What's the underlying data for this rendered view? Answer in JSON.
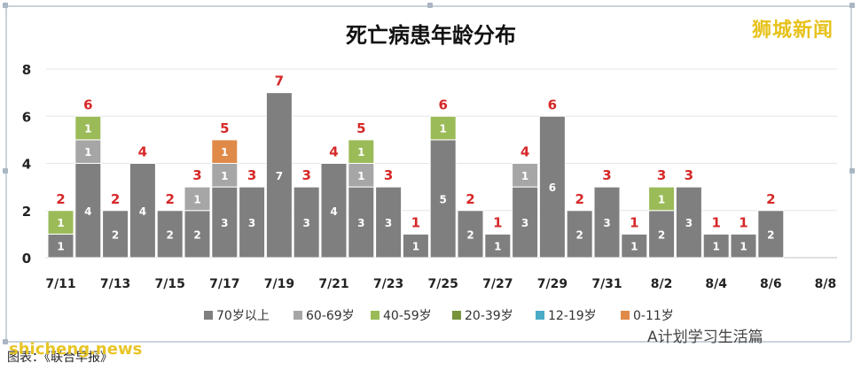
{
  "brand": "狮城新闻",
  "watermark": "shicheng.news",
  "footer_left": "图表：《联合早报》",
  "footer_right": "A计划学习生活篇",
  "colors": {
    "70_plus": "#7f7f7f",
    "60_69": "#a6a6a6",
    "40_59": "#9bbb59",
    "20_39": "#77933c",
    "12_19": "#4bacc6",
    "0_11": "#e08a49",
    "total_label": "#d62828"
  },
  "chart_data": {
    "type": "bar",
    "stacked": true,
    "title": "死亡病患年龄分布",
    "ylim": [
      0,
      8
    ],
    "yticks": [
      "0",
      "2",
      "4",
      "6",
      "8"
    ],
    "categories": [
      "7/11",
      "7/12",
      "7/13",
      "7/14",
      "7/15",
      "7/16",
      "7/17",
      "7/18",
      "7/19",
      "7/20",
      "7/21",
      "7/22",
      "7/23",
      "7/24",
      "7/25",
      "7/26",
      "7/27",
      "7/28",
      "7/29",
      "7/30",
      "7/31",
      "8/1",
      "8/2",
      "8/3",
      "8/4",
      "8/5",
      "8/6",
      "8/7",
      "8/8"
    ],
    "xtick_labels": [
      "7/11",
      "7/13",
      "7/15",
      "7/17",
      "7/19",
      "7/21",
      "7/23",
      "7/25",
      "7/27",
      "7/29",
      "7/31",
      "8/2",
      "8/4",
      "8/6",
      "8/8"
    ],
    "series": [
      {
        "name": "70岁以上",
        "color_key": "70_plus",
        "values": [
          1,
          4,
          2,
          4,
          2,
          2,
          3,
          3,
          7,
          3,
          4,
          3,
          3,
          1,
          5,
          2,
          1,
          3,
          6,
          2,
          3,
          1,
          2,
          3,
          1,
          1,
          2,
          0,
          0
        ]
      },
      {
        "name": "60-69岁",
        "color_key": "60_69",
        "values": [
          0,
          1,
          0,
          0,
          0,
          1,
          1,
          0,
          0,
          0,
          0,
          1,
          0,
          0,
          0,
          0,
          0,
          1,
          0,
          0,
          0,
          0,
          0,
          0,
          0,
          0,
          0,
          0,
          0
        ]
      },
      {
        "name": "40-59岁",
        "color_key": "40_59",
        "values": [
          1,
          1,
          0,
          0,
          0,
          0,
          0,
          0,
          0,
          0,
          0,
          1,
          0,
          0,
          1,
          0,
          0,
          0,
          0,
          0,
          0,
          0,
          1,
          0,
          0,
          0,
          0,
          0,
          0
        ]
      },
      {
        "name": "20-39岁",
        "color_key": "20_39",
        "values": [
          0,
          0,
          0,
          0,
          0,
          0,
          0,
          0,
          0,
          0,
          0,
          0,
          0,
          0,
          0,
          0,
          0,
          0,
          0,
          0,
          0,
          0,
          0,
          0,
          0,
          0,
          0,
          0,
          0
        ]
      },
      {
        "name": "12-19岁",
        "color_key": "12_19",
        "values": [
          0,
          0,
          0,
          0,
          0,
          0,
          0,
          0,
          0,
          0,
          0,
          0,
          0,
          0,
          0,
          0,
          0,
          0,
          0,
          0,
          0,
          0,
          0,
          0,
          0,
          0,
          0,
          0,
          0
        ]
      },
      {
        "name": "0-11岁",
        "color_key": "0_11",
        "values": [
          0,
          0,
          0,
          0,
          0,
          0,
          1,
          0,
          0,
          0,
          0,
          0,
          0,
          0,
          0,
          0,
          0,
          0,
          0,
          0,
          0,
          0,
          0,
          0,
          0,
          0,
          0,
          0,
          0
        ]
      }
    ],
    "totals": [
      2,
      6,
      2,
      4,
      2,
      3,
      5,
      3,
      7,
      3,
      4,
      5,
      3,
      1,
      6,
      2,
      1,
      4,
      6,
      2,
      3,
      1,
      3,
      3,
      1,
      1,
      2,
      0,
      0
    ],
    "grid": true,
    "legend_position": "bottom"
  }
}
